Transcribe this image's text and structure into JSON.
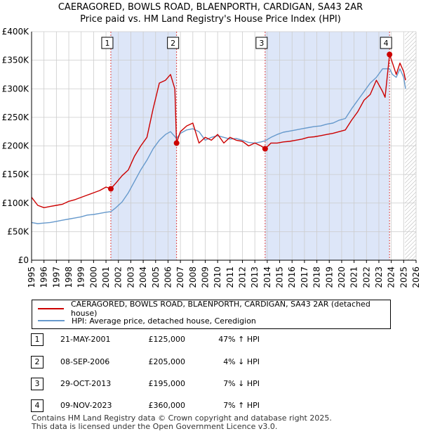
{
  "header": {
    "title_line1": "CAERAGORED, BOWLS ROAD, BLAENPORTH, CARDIGAN, SA43 2AR",
    "title_line2": "Price paid vs. HM Land Registry's House Price Index (HPI)"
  },
  "chart_data": {
    "type": "line",
    "title": "CAERAGORED, BOWLS ROAD, BLAENPORTH, CARDIGAN, SA43 2AR — Price paid vs. HM Land Registry's House Price Index (HPI)",
    "xlim": [
      1995,
      2026
    ],
    "ylim": [
      0,
      400000
    ],
    "x_ticks": [
      "1995",
      "1996",
      "1997",
      "1998",
      "1999",
      "2000",
      "2001",
      "2002",
      "2003",
      "2004",
      "2005",
      "2006",
      "2007",
      "2008",
      "2009",
      "2010",
      "2011",
      "2012",
      "2013",
      "2014",
      "2015",
      "2016",
      "2017",
      "2018",
      "2019",
      "2020",
      "2021",
      "2022",
      "2023",
      "2024",
      "2025",
      "2026"
    ],
    "y_ticks": [
      {
        "value": 0,
        "label": "£0"
      },
      {
        "value": 50000,
        "label": "£50K"
      },
      {
        "value": 100000,
        "label": "£100K"
      },
      {
        "value": 150000,
        "label": "£150K"
      },
      {
        "value": 200000,
        "label": "£200K"
      },
      {
        "value": 250000,
        "label": "£250K"
      },
      {
        "value": 300000,
        "label": "£300K"
      },
      {
        "value": 350000,
        "label": "£350K"
      },
      {
        "value": 400000,
        "label": "£400K"
      }
    ],
    "forecast_from": 2025.1,
    "series": [
      {
        "name": "CAERAGORED, BOWLS ROAD, BLAENPORTH, CARDIGAN, SA43 2AR (detached house)",
        "color": "#cc0000",
        "x": [
          1995.0,
          1995.5,
          1996.0,
          1996.5,
          1997.0,
          1997.5,
          1998.0,
          1998.5,
          1999.0,
          1999.5,
          2000.0,
          2000.5,
          2001.0,
          2001.39,
          2001.8,
          2002.3,
          2002.8,
          2003.3,
          2003.8,
          2004.3,
          2004.8,
          2005.3,
          2005.8,
          2006.2,
          2006.55,
          2006.69,
          2007.0,
          2007.5,
          2008.0,
          2008.5,
          2009.0,
          2009.5,
          2010.0,
          2010.5,
          2011.0,
          2011.5,
          2012.0,
          2012.5,
          2013.0,
          2013.5,
          2013.83,
          2014.3,
          2014.8,
          2015.3,
          2015.8,
          2016.3,
          2016.8,
          2017.3,
          2017.8,
          2018.3,
          2018.8,
          2019.3,
          2019.8,
          2020.3,
          2020.8,
          2021.3,
          2021.8,
          2022.3,
          2022.8,
          2023.3,
          2023.5,
          2023.86,
          2024.1,
          2024.4,
          2024.7,
          2025.0,
          2025.15
        ],
        "y": [
          110000,
          96000,
          92000,
          94000,
          96000,
          98000,
          103000,
          106000,
          110000,
          114000,
          118000,
          122000,
          128000,
          125000,
          135000,
          148000,
          158000,
          182000,
          200000,
          215000,
          265000,
          310000,
          315000,
          325000,
          300000,
          205000,
          225000,
          235000,
          240000,
          205000,
          215000,
          210000,
          220000,
          205000,
          215000,
          210000,
          208000,
          200000,
          205000,
          200000,
          195000,
          205000,
          205000,
          207000,
          208000,
          210000,
          212000,
          215000,
          216000,
          218000,
          220000,
          222000,
          225000,
          228000,
          245000,
          260000,
          280000,
          290000,
          315000,
          295000,
          285000,
          360000,
          345000,
          325000,
          345000,
          330000,
          315000
        ]
      },
      {
        "name": "HPI: Average price, detached house, Ceredigion",
        "color": "#6699cc",
        "x": [
          1995.0,
          1995.5,
          1996.0,
          1996.5,
          1997.0,
          1997.5,
          1998.0,
          1998.5,
          1999.0,
          1999.5,
          2000.0,
          2000.5,
          2001.0,
          2001.39,
          2001.8,
          2002.3,
          2002.8,
          2003.3,
          2003.8,
          2004.3,
          2004.8,
          2005.3,
          2005.8,
          2006.2,
          2006.69,
          2007.0,
          2007.5,
          2008.0,
          2008.5,
          2009.0,
          2009.5,
          2010.0,
          2010.5,
          2011.0,
          2011.5,
          2012.0,
          2012.5,
          2013.0,
          2013.5,
          2013.83,
          2014.3,
          2014.8,
          2015.3,
          2015.8,
          2016.3,
          2016.8,
          2017.3,
          2017.8,
          2018.3,
          2018.8,
          2019.3,
          2019.8,
          2020.3,
          2020.8,
          2021.3,
          2021.8,
          2022.3,
          2022.8,
          2023.3,
          2023.86,
          2024.1,
          2024.4,
          2024.7,
          2025.0,
          2025.15
        ],
        "y": [
          66000,
          64000,
          65000,
          66000,
          68000,
          70000,
          72000,
          74000,
          76000,
          79000,
          80000,
          82000,
          84000,
          85000,
          92000,
          102000,
          118000,
          138000,
          158000,
          175000,
          195000,
          210000,
          220000,
          225000,
          213000,
          222000,
          228000,
          230000,
          225000,
          210000,
          215000,
          218000,
          215000,
          212000,
          213000,
          210000,
          206000,
          205000,
          207000,
          209000,
          215000,
          220000,
          224000,
          226000,
          228000,
          230000,
          232000,
          234000,
          235000,
          238000,
          240000,
          245000,
          248000,
          265000,
          280000,
          295000,
          310000,
          320000,
          335000,
          335000,
          325000,
          320000,
          335000,
          320000,
          300000
        ]
      }
    ],
    "transactions": [
      {
        "num": "1",
        "x": 2001.39,
        "price": 125000,
        "date": "21-MAY-2001",
        "price_label": "£125,000",
        "hpi": "47% ↑ HPI"
      },
      {
        "num": "2",
        "x": 2006.69,
        "price": 205000,
        "date": "08-SEP-2006",
        "price_label": "£205,000",
        "hpi": "4% ↓ HPI"
      },
      {
        "num": "3",
        "x": 2013.83,
        "price": 195000,
        "date": "29-OCT-2013",
        "price_label": "£195,000",
        "hpi": "7% ↓ HPI"
      },
      {
        "num": "4",
        "x": 2023.86,
        "price": 360000,
        "date": "09-NOV-2023",
        "price_label": "£360,000",
        "hpi": "7% ↑ HPI"
      }
    ]
  },
  "legend": {
    "property_label": "CAERAGORED, BOWLS ROAD, BLAENPORTH, CARDIGAN, SA43 2AR (detached house)",
    "hpi_label": "HPI: Average price, detached house, Ceredigion"
  },
  "colors": {
    "property": "#cc0000",
    "hpi": "#6699cc",
    "shade": "#dde6f8",
    "grid": "#cccccc",
    "marker_line": "#dd4444"
  },
  "footer": {
    "line1": "Contains HM Land Registry data © Crown copyright and database right 2025.",
    "line2": "This data is licensed under the Open Government Licence v3.0."
  }
}
